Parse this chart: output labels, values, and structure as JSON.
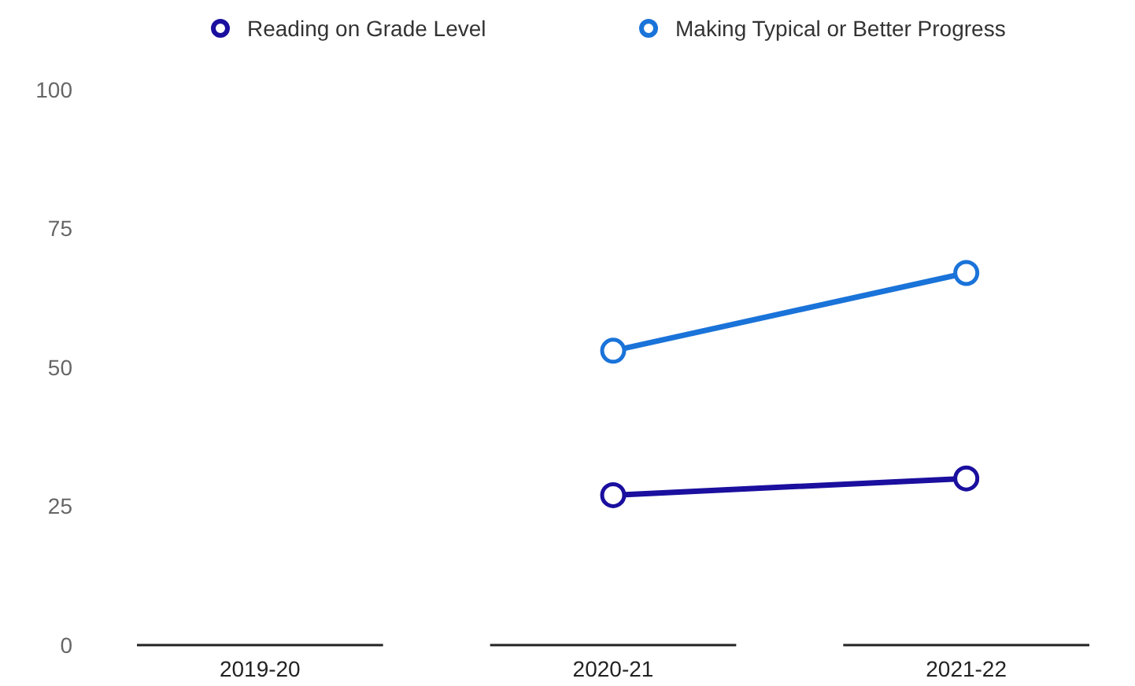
{
  "chart_data": {
    "type": "line",
    "categories": [
      "2019-20",
      "2020-21",
      "2021-22"
    ],
    "series": [
      {
        "name": "Reading on Grade Level",
        "color": "#1a0f9e",
        "values": [
          null,
          27,
          30
        ]
      },
      {
        "name": "Making Typical or Better Progress",
        "color": "#1a73d9",
        "values": [
          null,
          53,
          67
        ]
      }
    ],
    "ylim": [
      0,
      100
    ],
    "yticks": [
      0,
      25,
      50,
      75,
      100
    ],
    "grid": false,
    "legend": "top",
    "marker": "circle",
    "line_style": "solid"
  }
}
